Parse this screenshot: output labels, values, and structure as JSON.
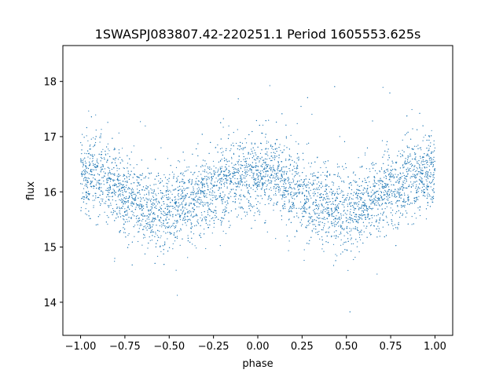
{
  "chart_data": {
    "type": "scatter",
    "title": "1SWASPJ083807.42-220251.1 Period 1605553.625s",
    "xlabel": "phase",
    "ylabel": "flux",
    "xlim": [
      -1.1,
      1.1
    ],
    "ylim": [
      13.4,
      18.65
    ],
    "xticks": [
      -1.0,
      -0.75,
      -0.5,
      -0.25,
      0.0,
      0.25,
      0.5,
      0.75,
      1.0
    ],
    "xtick_labels": [
      "−1.00",
      "−0.75",
      "−0.50",
      "−0.25",
      "0.00",
      "0.25",
      "0.50",
      "0.75",
      "1.00"
    ],
    "yticks": [
      14,
      15,
      16,
      17,
      18
    ],
    "ytick_labels": [
      "14",
      "15",
      "16",
      "17",
      "18"
    ],
    "grid": false,
    "legend": "none",
    "marker_color": "#1f77b4",
    "series": [
      {
        "phase_range": [
          -1.0,
          1.0
        ],
        "mean_curve": {
          "phase": [
            -1.0,
            -0.9,
            -0.8,
            -0.7,
            -0.6,
            -0.5,
            -0.4,
            -0.3,
            -0.2,
            -0.1,
            0.0,
            0.1,
            0.2,
            0.3,
            0.4,
            0.5,
            0.6,
            0.7,
            0.8,
            0.9,
            1.0
          ],
          "flux": [
            16.35,
            16.3,
            16.05,
            15.85,
            15.7,
            15.65,
            15.8,
            15.95,
            16.15,
            16.25,
            16.35,
            16.3,
            16.05,
            15.85,
            15.7,
            15.65,
            15.8,
            15.95,
            16.15,
            16.25,
            16.35
          ]
        },
        "typical_scatter": 0.35,
        "approx_points": 12000
      }
    ]
  }
}
